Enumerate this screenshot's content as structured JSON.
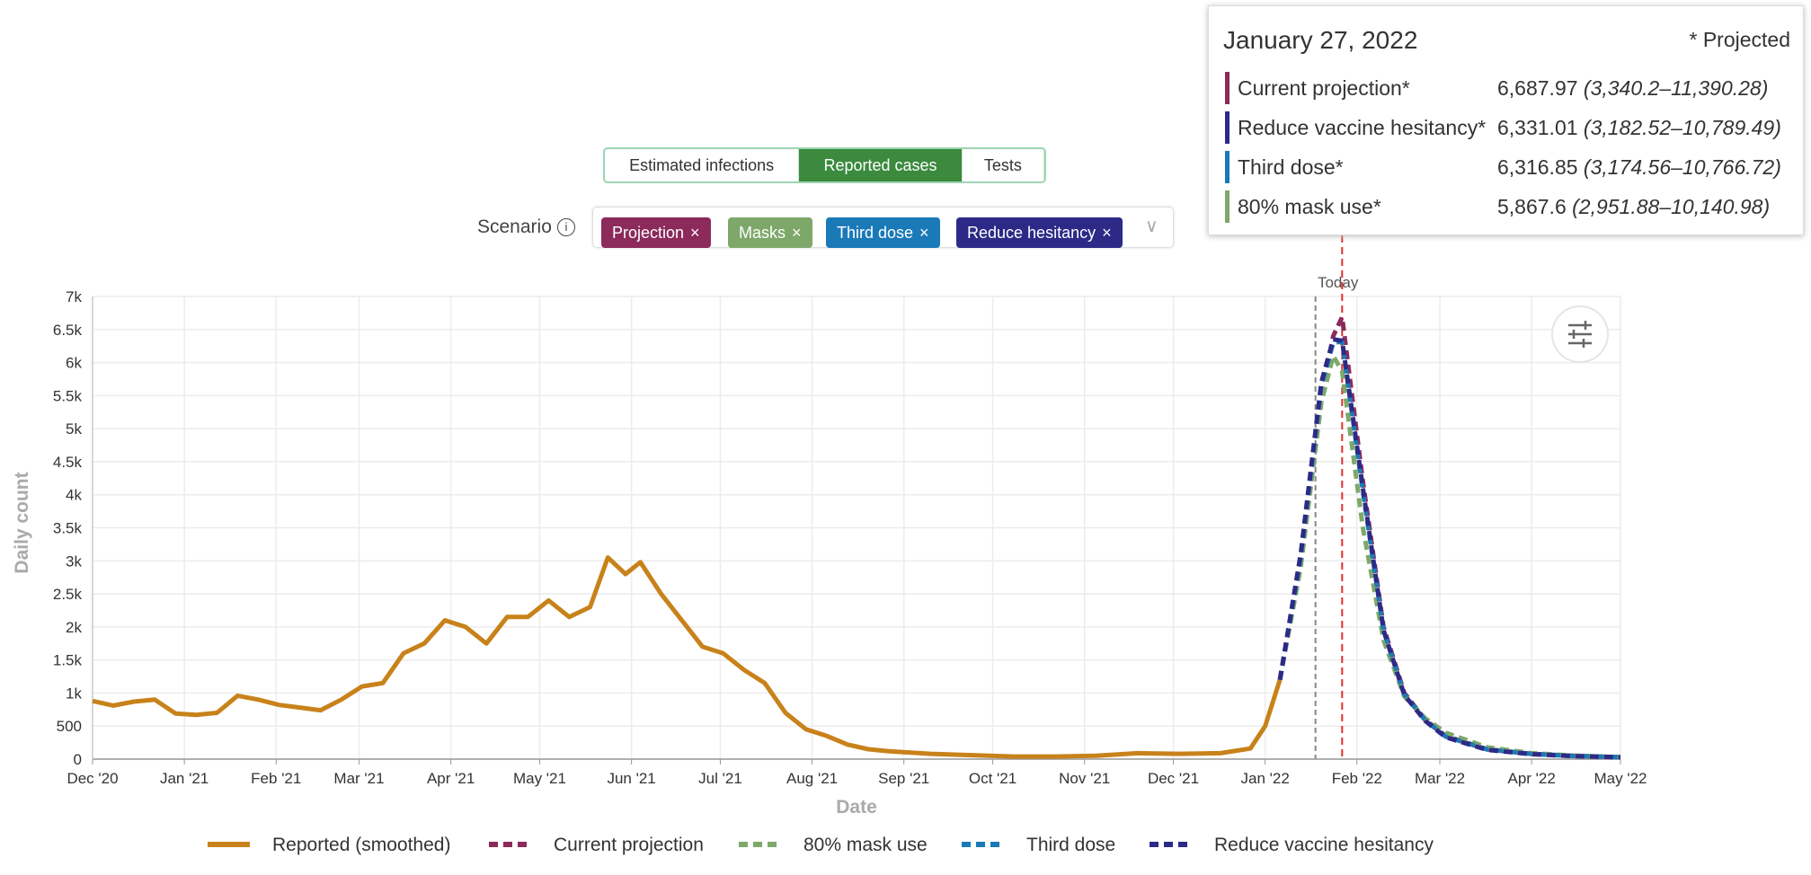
{
  "toggle": {
    "options": [
      "Estimated infections",
      "Reported cases",
      "Tests"
    ],
    "active": 1
  },
  "scenario": {
    "label": "Scenario",
    "info": "i",
    "chips": [
      {
        "label": "Projection",
        "color": "#8b2a5b"
      },
      {
        "label": "Masks",
        "color": "#7ea86a"
      },
      {
        "label": "Third dose",
        "color": "#1a7ab8"
      },
      {
        "label": "Reduce hesitancy",
        "color": "#2d2a87"
      }
    ],
    "remove": "×",
    "expand": "∨"
  },
  "tooltip": {
    "date": "January 27, 2022",
    "note": "* Projected",
    "rows": [
      {
        "name": "Current projection*",
        "value": "6,687.97",
        "interval": "(3,340.2–11,390.28)",
        "color": "#8b2a5b"
      },
      {
        "name": "Reduce vaccine hesitancy*",
        "value": "6,331.01",
        "interval": "(3,182.52–10,789.49)",
        "color": "#2d2a87"
      },
      {
        "name": "Third dose*",
        "value": "6,316.85",
        "interval": "(3,174.56–10,766.72)",
        "color": "#1a7ab8"
      },
      {
        "name": "80% mask use*",
        "value": "5,867.6",
        "interval": "(2,951.88–10,140.98)",
        "color": "#7ea86a"
      }
    ]
  },
  "chart_data": {
    "type": "line",
    "xlabel": "Date",
    "ylabel": "Daily count",
    "grid": true,
    "xlim": [
      "2020-12-01",
      "2022-05-01"
    ],
    "xticks": [
      {
        "value": "2020-12-01",
        "label": "Dec '20"
      },
      {
        "value": "2021-01-01",
        "label": "Jan '21"
      },
      {
        "value": "2021-02-01",
        "label": "Feb '21"
      },
      {
        "value": "2021-03-01",
        "label": "Mar '21"
      },
      {
        "value": "2021-04-01",
        "label": "Apr '21"
      },
      {
        "value": "2021-05-01",
        "label": "May '21"
      },
      {
        "value": "2021-06-01",
        "label": "Jun '21"
      },
      {
        "value": "2021-07-01",
        "label": "Jul '21"
      },
      {
        "value": "2021-08-01",
        "label": "Aug '21"
      },
      {
        "value": "2021-09-01",
        "label": "Sep '21"
      },
      {
        "value": "2021-10-01",
        "label": "Oct '21"
      },
      {
        "value": "2021-11-01",
        "label": "Nov '21"
      },
      {
        "value": "2021-12-01",
        "label": "Dec '21"
      },
      {
        "value": "2022-01-01",
        "label": "Jan '22"
      },
      {
        "value": "2022-02-01",
        "label": "Feb '22"
      },
      {
        "value": "2022-03-01",
        "label": "Mar '22"
      },
      {
        "value": "2022-04-01",
        "label": "Apr '22"
      },
      {
        "value": "2022-05-01",
        "label": "May '22"
      }
    ],
    "ylim": [
      0,
      7000
    ],
    "yticks": [
      0,
      500,
      {
        "value": 1000,
        "label": "1k"
      },
      {
        "value": 1500,
        "label": "1.5k"
      },
      {
        "value": 2000,
        "label": "2k"
      },
      {
        "value": 2500,
        "label": "2.5k"
      },
      {
        "value": 3000,
        "label": "3k"
      },
      {
        "value": 3500,
        "label": "3.5k"
      },
      {
        "value": 4000,
        "label": "4k"
      },
      {
        "value": 4500,
        "label": "4.5k"
      },
      {
        "value": 5000,
        "label": "5k"
      },
      {
        "value": 5500,
        "label": "5.5k"
      },
      {
        "value": 6000,
        "label": "6k"
      },
      {
        "value": 6500,
        "label": "6.5k"
      },
      {
        "value": 7000,
        "label": "7k"
      }
    ],
    "today": {
      "label": "Today",
      "x": "2022-01-18"
    },
    "hover_x": "2022-01-27",
    "series": [
      {
        "name": "Reported (smoothed)",
        "color": "#c8821a",
        "dashed": false,
        "x": [
          "2020-12-01",
          "2020-12-08",
          "2020-12-15",
          "2020-12-22",
          "2020-12-29",
          "2021-01-05",
          "2021-01-12",
          "2021-01-19",
          "2021-01-26",
          "2021-02-02",
          "2021-02-09",
          "2021-02-16",
          "2021-02-23",
          "2021-03-02",
          "2021-03-09",
          "2021-03-16",
          "2021-03-23",
          "2021-03-30",
          "2021-04-06",
          "2021-04-13",
          "2021-04-20",
          "2021-04-27",
          "2021-05-04",
          "2021-05-11",
          "2021-05-18",
          "2021-05-24",
          "2021-05-30",
          "2021-06-04",
          "2021-06-11",
          "2021-06-18",
          "2021-06-25",
          "2021-07-02",
          "2021-07-09",
          "2021-07-16",
          "2021-07-23",
          "2021-07-30",
          "2021-08-06",
          "2021-08-13",
          "2021-08-20",
          "2021-08-27",
          "2021-09-10",
          "2021-09-24",
          "2021-10-08",
          "2021-10-22",
          "2021-11-05",
          "2021-11-19",
          "2021-12-03",
          "2021-12-17",
          "2021-12-27",
          "2022-01-01",
          "2022-01-06"
        ],
        "values": [
          880,
          810,
          870,
          900,
          690,
          670,
          700,
          960,
          900,
          820,
          780,
          740,
          900,
          1100,
          1150,
          1600,
          1750,
          2100,
          2000,
          1750,
          2150,
          2150,
          2400,
          2150,
          2300,
          3050,
          2800,
          2980,
          2500,
          2100,
          1700,
          1600,
          1350,
          1150,
          700,
          450,
          350,
          220,
          150,
          120,
          80,
          60,
          40,
          40,
          50,
          90,
          80,
          90,
          160,
          500,
          1200
        ]
      },
      {
        "name": "Current projection",
        "color": "#8b2a5b",
        "dashed": true,
        "x": [
          "2022-01-06",
          "2022-01-13",
          "2022-01-20",
          "2022-01-24",
          "2022-01-27",
          "2022-02-03",
          "2022-02-10",
          "2022-02-17",
          "2022-02-24",
          "2022-03-03",
          "2022-03-17",
          "2022-04-01",
          "2022-04-15",
          "2022-05-01"
        ],
        "values": [
          1200,
          3000,
          5500,
          6400,
          6687.97,
          4200,
          2000,
          1000,
          600,
          350,
          150,
          80,
          50,
          30
        ]
      },
      {
        "name": "80% mask use",
        "color": "#7ea86a",
        "dashed": true,
        "x": [
          "2022-01-06",
          "2022-01-13",
          "2022-01-20",
          "2022-01-24",
          "2022-01-27",
          "2022-02-03",
          "2022-02-10",
          "2022-02-17",
          "2022-02-24",
          "2022-03-03",
          "2022-03-17",
          "2022-04-01",
          "2022-04-15",
          "2022-05-01"
        ],
        "values": [
          1200,
          2900,
          5400,
          6100,
          5867.6,
          3500,
          1800,
          950,
          620,
          400,
          180,
          90,
          55,
          30
        ]
      },
      {
        "name": "Third dose",
        "color": "#1a7ab8",
        "dashed": true,
        "x": [
          "2022-01-06",
          "2022-01-13",
          "2022-01-20",
          "2022-01-24",
          "2022-01-27",
          "2022-02-03",
          "2022-02-10",
          "2022-02-17",
          "2022-02-24",
          "2022-03-03",
          "2022-03-17",
          "2022-04-01",
          "2022-04-15",
          "2022-05-01"
        ],
        "values": [
          1200,
          3050,
          5650,
          6300,
          6316.85,
          4050,
          1950,
          980,
          590,
          340,
          145,
          78,
          48,
          30
        ]
      },
      {
        "name": "Reduce vaccine hesitancy",
        "color": "#2d2a87",
        "dashed": true,
        "x": [
          "2022-01-06",
          "2022-01-13",
          "2022-01-20",
          "2022-01-24",
          "2022-01-27",
          "2022-02-03",
          "2022-02-10",
          "2022-02-17",
          "2022-02-24",
          "2022-03-03",
          "2022-03-17",
          "2022-04-01",
          "2022-04-15",
          "2022-05-01"
        ],
        "values": [
          1200,
          3100,
          5700,
          6350,
          6331.01,
          4100,
          1950,
          970,
          580,
          330,
          140,
          75,
          45,
          28
        ]
      }
    ]
  }
}
